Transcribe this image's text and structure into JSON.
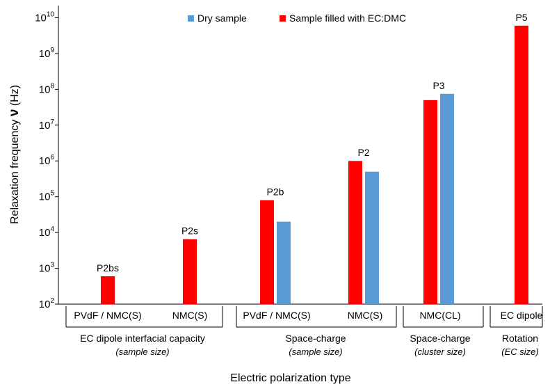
{
  "chart_data": {
    "type": "bar",
    "ylabel_main": "Relaxation frequency ",
    "ylabel_symbol": "ν",
    "ylabel_unit": " (Hz)",
    "xlabel": "Electric polarization type",
    "yscale": "log",
    "ylim": [
      100,
      20000000000
    ],
    "ytick_base": "10",
    "ytick_exponents": [
      "2",
      "3",
      "4",
      "5",
      "6",
      "7",
      "8",
      "9",
      "10"
    ],
    "legend_position": "top",
    "categories": [
      "PVdF / NMC(S)",
      "NMC(S)",
      "PVdF / NMC(S)",
      "NMC(S)",
      "NMC(CL)",
      "EC dipole"
    ],
    "series": [
      {
        "name": "Sample filled with EC:DMC",
        "color": "#ff0000",
        "values": [
          600,
          6500,
          80000,
          1000000,
          50000000,
          6000000000
        ]
      },
      {
        "name": "Dry sample",
        "color": "#5b9bd5",
        "values": [
          null,
          null,
          20000,
          500000,
          75000000,
          null
        ]
      }
    ],
    "data_labels": [
      "P2bs",
      "P2s",
      "P2b",
      "P2",
      "P3",
      "P5"
    ],
    "groups": [
      {
        "label": "EC dipole interfacial capacity",
        "sublabel": "(sample size)",
        "categories": [
          0,
          1
        ]
      },
      {
        "label": "Space-charge",
        "sublabel": "(sample size)",
        "categories": [
          2,
          3
        ]
      },
      {
        "label": "Space-charge",
        "sublabel": "(cluster size)",
        "categories": [
          4
        ]
      },
      {
        "label": "Rotation",
        "sublabel": "(EC size)",
        "categories": [
          5
        ]
      }
    ]
  }
}
